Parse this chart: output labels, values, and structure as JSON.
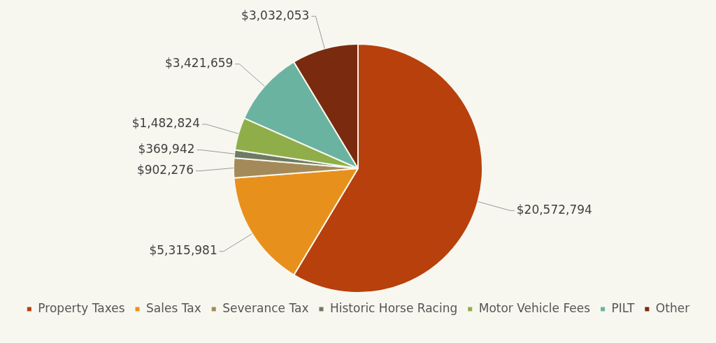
{
  "chart_data": {
    "type": "pie",
    "categories": [
      "Property Taxes",
      "Sales Tax",
      "Severance Tax",
      "Historic Horse Racing",
      "Motor Vehicle Fees",
      "PILT",
      "Other"
    ],
    "values": [
      20572794,
      5315981,
      902276,
      369942,
      1482824,
      3421659,
      3032053
    ],
    "value_labels": [
      "$20,572,794",
      "$5,315,981",
      "$902,276",
      "$369,942",
      "$1,482,824",
      "$3,421,659",
      "$3,032,053"
    ],
    "colors": [
      "#b8400c",
      "#e8901c",
      "#a38a58",
      "#6f7a62",
      "#8fae4a",
      "#6ab3a0",
      "#7a2a0e"
    ],
    "legend": "bottom"
  }
}
